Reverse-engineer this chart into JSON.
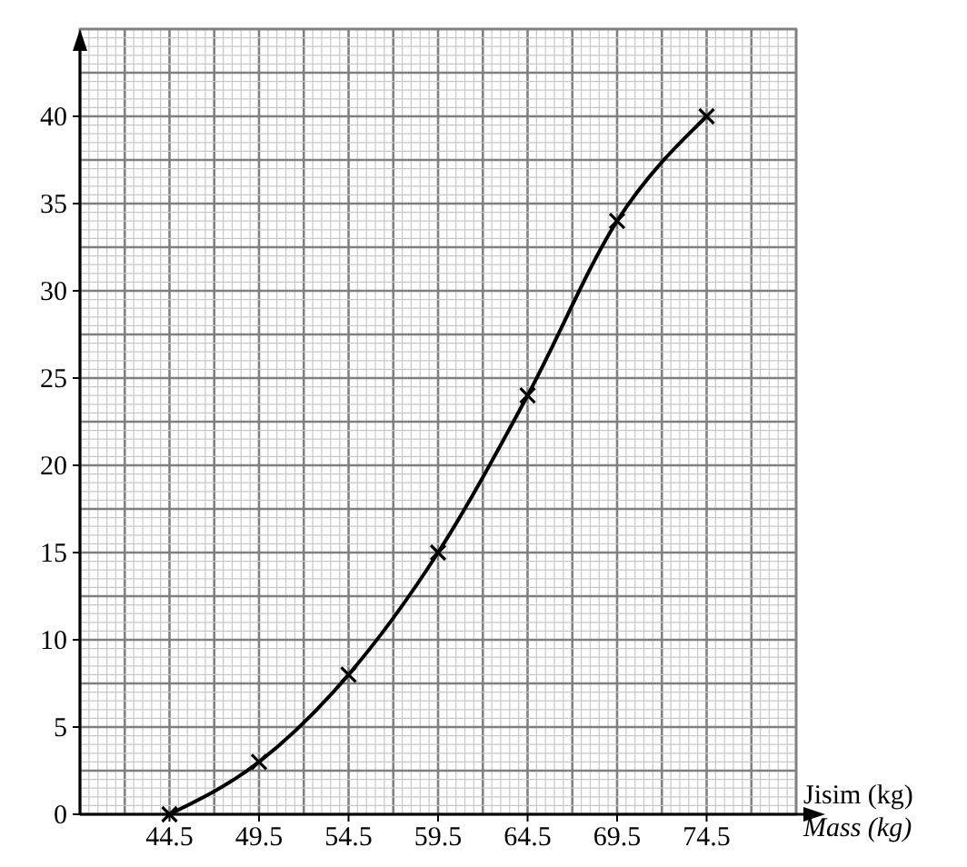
{
  "chart_data": {
    "type": "line",
    "xlabel": "Jisim (kg)\nMass (kg)",
    "x": [
      44.5,
      49.5,
      54.5,
      59.5,
      64.5,
      69.5,
      74.5
    ],
    "series": [
      {
        "color": "#000000",
        "values": [
          0,
          3,
          8,
          15,
          24,
          34,
          40
        ]
      }
    ],
    "xlim": [
      39.5,
      79.5
    ],
    "ylim": [
      0,
      45
    ],
    "xticks": [
      44.5,
      49.5,
      54.5,
      59.5,
      64.5,
      69.5,
      74.5
    ],
    "yticks": [
      0,
      5,
      10,
      15,
      20,
      25,
      30,
      35,
      40
    ],
    "grid": true,
    "marker": "cross",
    "line_style": "solid"
  }
}
